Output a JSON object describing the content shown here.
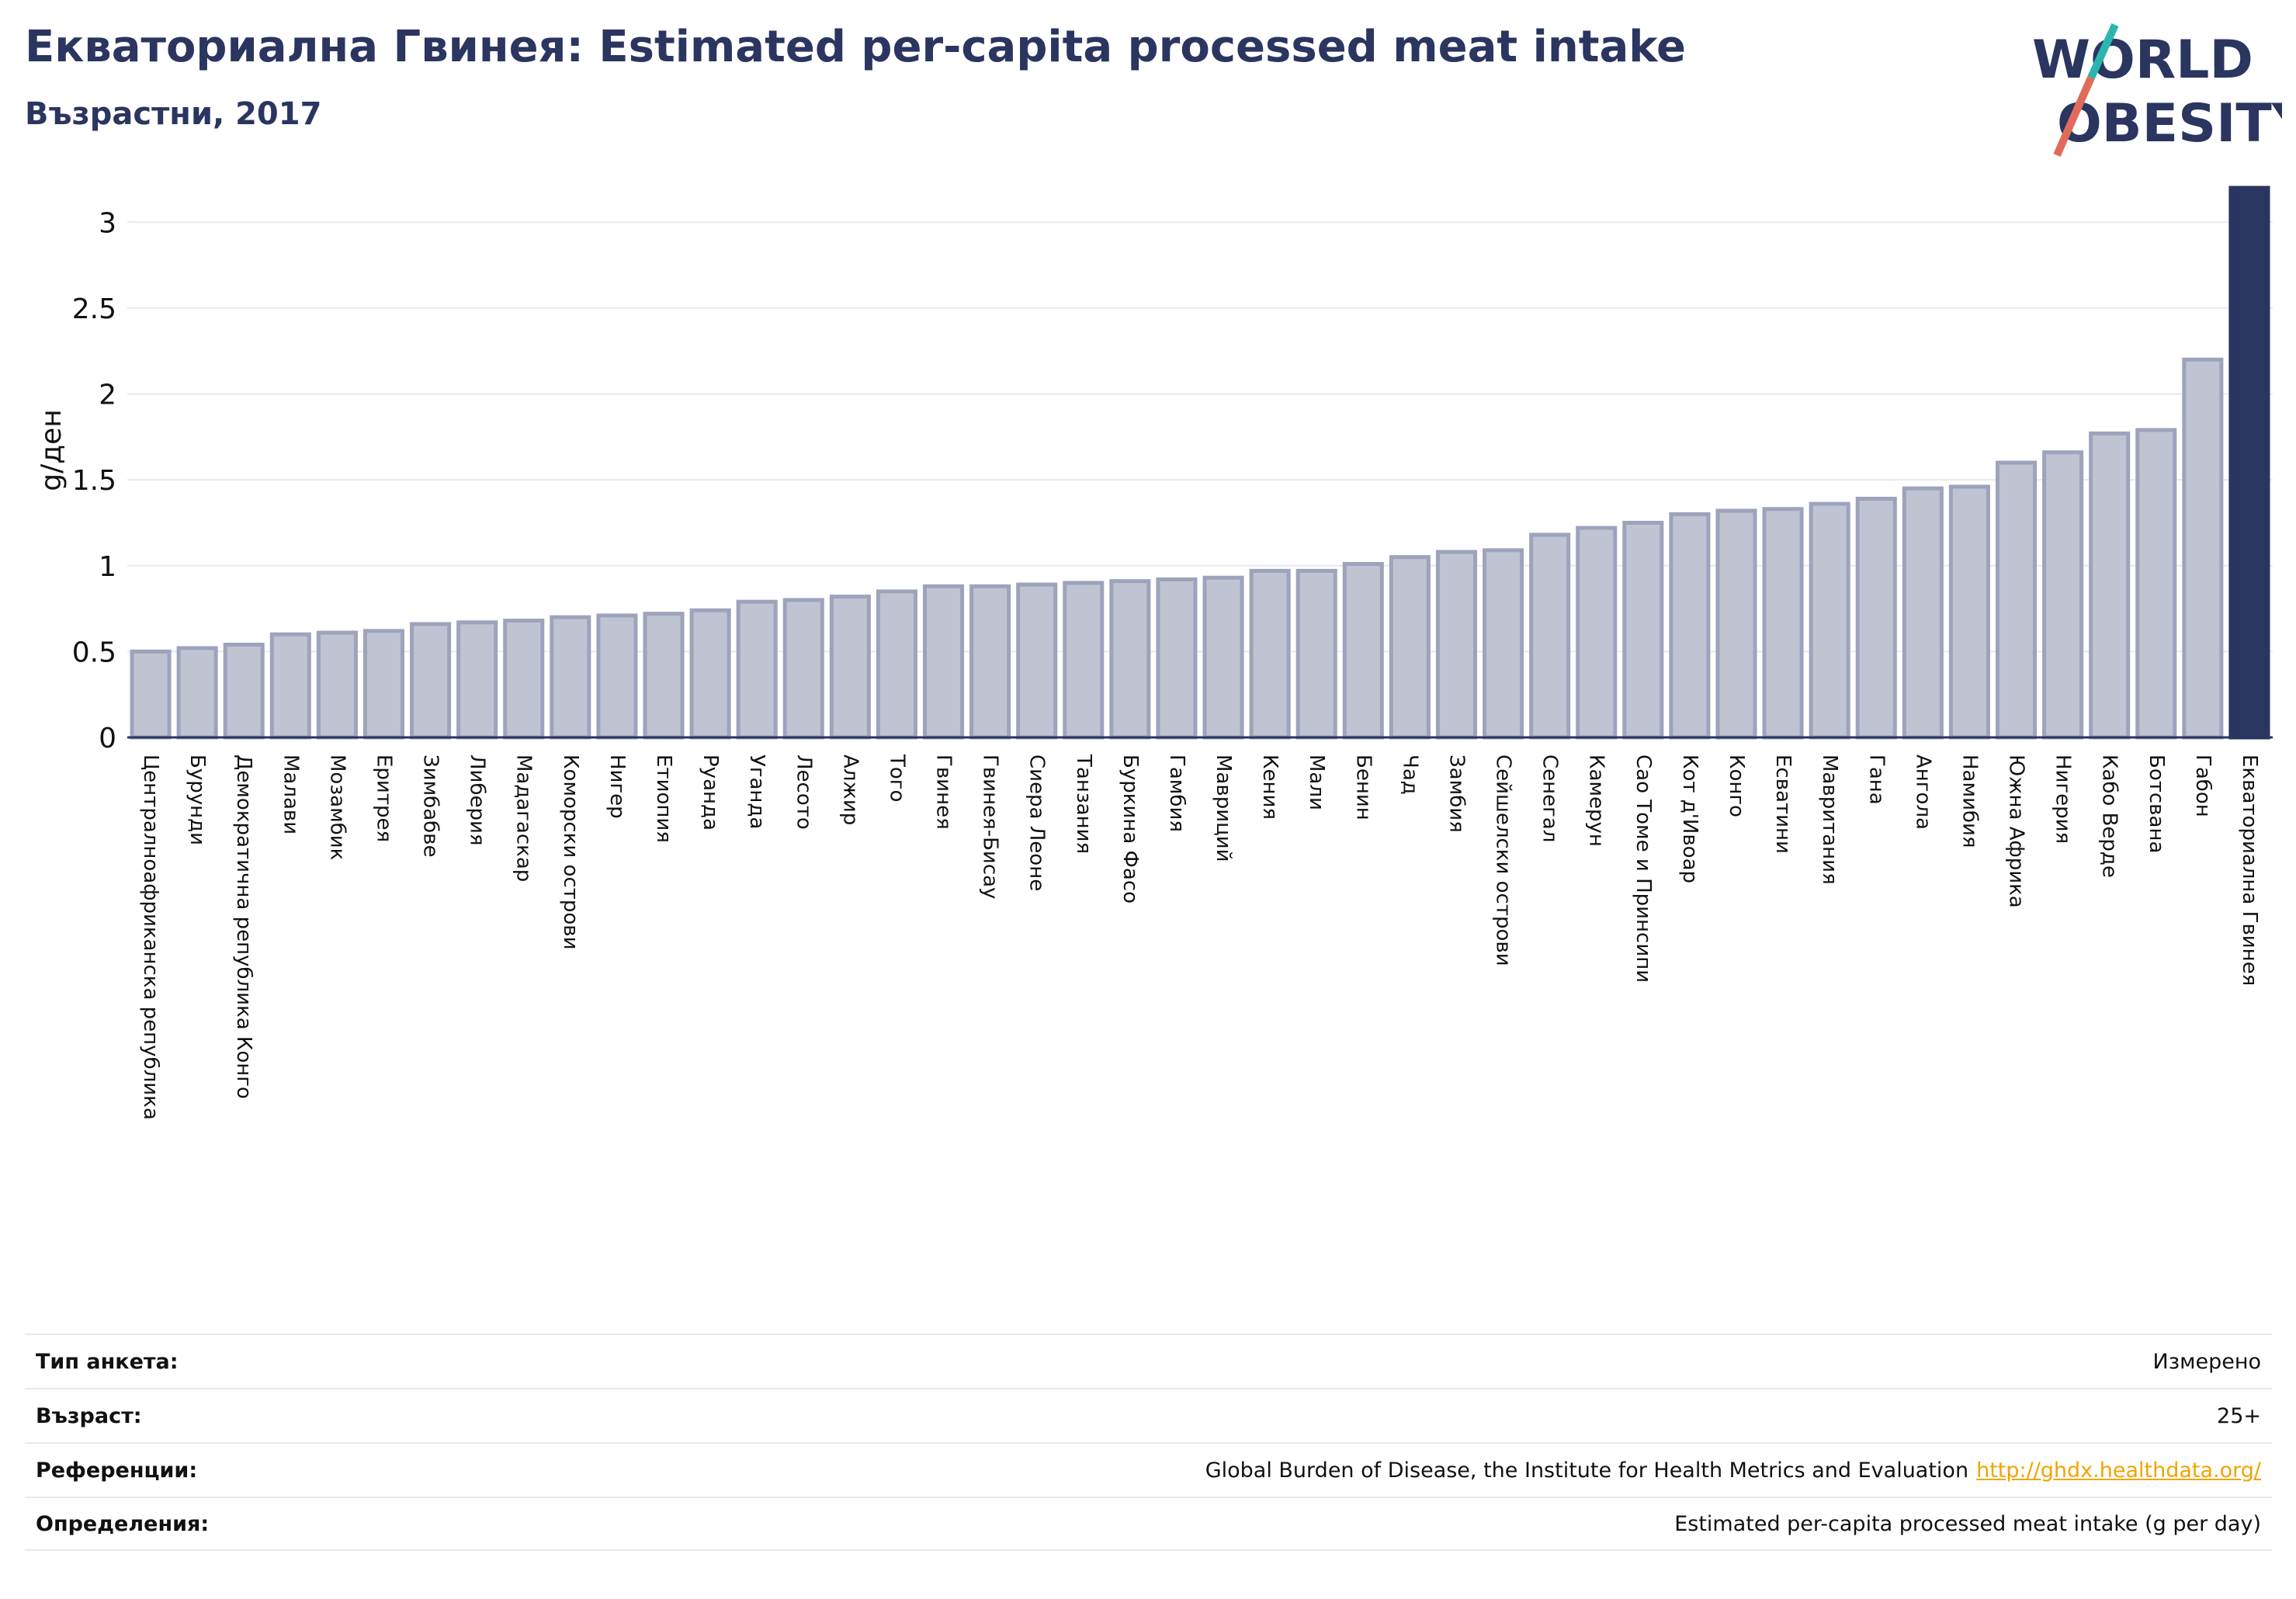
{
  "header": {
    "title": "Екваториална Гвинея: Estimated per-capita processed meat intake",
    "subtitle": "Възрастни, 2017"
  },
  "logo": {
    "line1": "WORLD",
    "line2": "OBESITY"
  },
  "colors": {
    "bar": "#bfc3d2",
    "bar_stroke": "#9ea3bc",
    "highlight": "#2a3560",
    "title": "#2a3560",
    "link": "#f0a500",
    "logo_teal": "#2cb5b0",
    "logo_coral": "#e26a5a"
  },
  "chart_data": {
    "type": "bar",
    "ylabel": "g/ден",
    "ylim": [
      0,
      3.2
    ],
    "yticks": [
      "0",
      "0.5",
      "1",
      "1.5",
      "2",
      "2.5",
      "3"
    ],
    "highlight": "Екваториална Гвинея",
    "categories": [
      "Централноафриканска република",
      "Бурунди",
      "Демократична република Конго",
      "Малави",
      "Мозамбик",
      "Еритрея",
      "Зимбабве",
      "Либерия",
      "Мадагаскар",
      "Коморски острови",
      "Нигер",
      "Етиопия",
      "Руанда",
      "Уганда",
      "Лесото",
      "Алжир",
      "Того",
      "Гвинея",
      "Гвинея-Бисау",
      "Сиера Леоне",
      "Танзания",
      "Буркина Фасо",
      "Гамбия",
      "Мавриций",
      "Кения",
      "Мали",
      "Бенин",
      "Чад",
      "Замбия",
      "Сейшелски острови",
      "Сенегал",
      "Камерун",
      "Сао Томе и Принсипи",
      "Кот д'Ивоар",
      "Конго",
      "Есватини",
      "Мавритания",
      "Гана",
      "Ангола",
      "Намибия",
      "Южна Африка",
      "Нигерия",
      "Кабо Верде",
      "Ботсвана",
      "Габон",
      "Екваториална Гвинея"
    ],
    "values": [
      0.5,
      0.52,
      0.54,
      0.6,
      0.61,
      0.62,
      0.66,
      0.67,
      0.68,
      0.7,
      0.71,
      0.72,
      0.74,
      0.79,
      0.8,
      0.82,
      0.85,
      0.88,
      0.88,
      0.89,
      0.9,
      0.91,
      0.92,
      0.93,
      0.97,
      0.97,
      1.01,
      1.05,
      1.08,
      1.09,
      1.18,
      1.22,
      1.25,
      1.3,
      1.32,
      1.33,
      1.36,
      1.39,
      1.45,
      1.46,
      1.6,
      1.66,
      1.77,
      1.79,
      2.2,
      3.2
    ]
  },
  "footer": {
    "rows": [
      {
        "label": "Тип анкета:",
        "value": "Измерено"
      },
      {
        "label": "Възраст:",
        "value": "25+"
      },
      {
        "label": "Референции:",
        "value": "Global Burden of Disease, the Institute for Health Metrics and Evaluation",
        "link": "http://ghdx.healthdata.org/"
      },
      {
        "label": "Определения:",
        "value": "Estimated per-capita processed meat intake (g per day)"
      }
    ]
  }
}
